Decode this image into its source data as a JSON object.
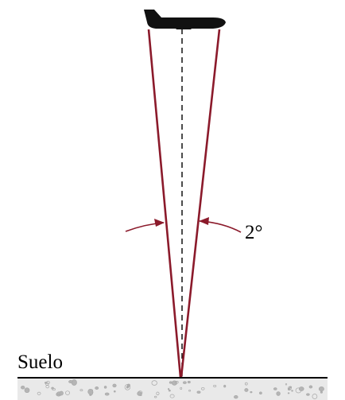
{
  "labels": {
    "ground": "Suelo",
    "angle": "2°"
  },
  "colors": {
    "beam": "#8b1a2b",
    "ink": "#000000",
    "ground_fill": "#e4e4e4",
    "pebble": "#a8a8a8"
  },
  "icons": {
    "aircraft": "airplane-icon"
  }
}
